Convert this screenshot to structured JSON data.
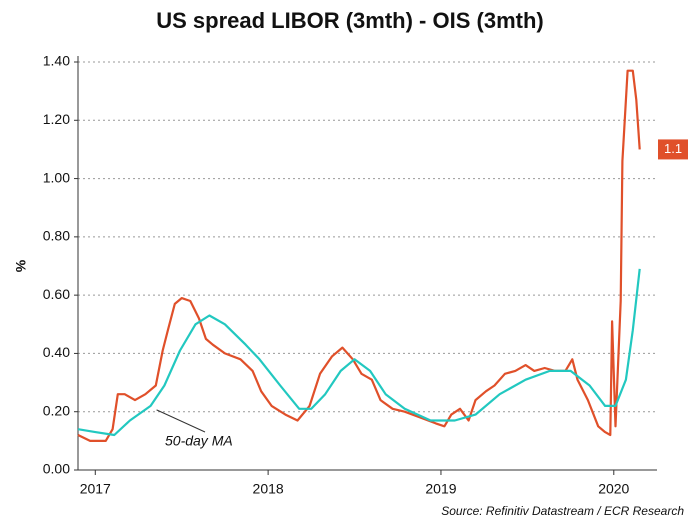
{
  "chart_data": {
    "type": "line",
    "title": "US spread LIBOR (3mth) - OIS (3mth)",
    "y_label": "%",
    "source": "Source: Refinitiv Datastream / ECR Research",
    "annotation": "50-day MA",
    "xlim": [
      2016.9,
      2020.25
    ],
    "xticks": [
      2017,
      2018,
      2019,
      2020
    ],
    "ylim": [
      0,
      1.4
    ],
    "yticks": [
      {
        "value": 0,
        "label": "0.00"
      },
      {
        "value": 0.2,
        "label": "0.20"
      },
      {
        "value": 0.4,
        "label": "0.40"
      },
      {
        "value": 0.6,
        "label": "0.60"
      },
      {
        "value": 0.8,
        "label": "0.80"
      },
      {
        "value": 1.0,
        "label": "1.00"
      },
      {
        "value": 1.2,
        "label": "1.20"
      },
      {
        "value": 1.4,
        "label": "1.40"
      }
    ],
    "grid": true,
    "series": [
      {
        "name": "LIBOR-OIS",
        "color": "#e0502a",
        "end_label": "1.1",
        "x": [
          2016.9,
          2016.97,
          2017.06,
          2017.1,
          2017.13,
          2017.17,
          2017.23,
          2017.29,
          2017.35,
          2017.39,
          2017.42,
          2017.46,
          2017.5,
          2017.55,
          2017.6,
          2017.64,
          2017.68,
          2017.75,
          2017.84,
          2017.91,
          2017.96,
          2018.02,
          2018.1,
          2018.17,
          2018.24,
          2018.3,
          2018.37,
          2018.43,
          2018.49,
          2018.54,
          2018.6,
          2018.65,
          2018.72,
          2018.79,
          2018.88,
          2018.97,
          2019.02,
          2019.06,
          2019.11,
          2019.16,
          2019.2,
          2019.26,
          2019.31,
          2019.37,
          2019.43,
          2019.49,
          2019.54,
          2019.6,
          2019.66,
          2019.72,
          2019.76,
          2019.79,
          2019.85,
          2019.91,
          2019.95,
          2019.98,
          2019.99,
          2020.01,
          2020.04,
          2020.05,
          2020.08,
          2020.11,
          2020.13,
          2020.15
        ],
        "values": [
          0.12,
          0.1,
          0.1,
          0.14,
          0.26,
          0.26,
          0.24,
          0.26,
          0.29,
          0.41,
          0.48,
          0.57,
          0.59,
          0.58,
          0.52,
          0.45,
          0.43,
          0.4,
          0.38,
          0.34,
          0.27,
          0.22,
          0.19,
          0.17,
          0.22,
          0.33,
          0.39,
          0.42,
          0.38,
          0.33,
          0.31,
          0.24,
          0.21,
          0.2,
          0.18,
          0.16,
          0.15,
          0.19,
          0.21,
          0.17,
          0.24,
          0.27,
          0.29,
          0.33,
          0.34,
          0.36,
          0.34,
          0.35,
          0.34,
          0.34,
          0.38,
          0.31,
          0.24,
          0.15,
          0.13,
          0.12,
          0.51,
          0.15,
          0.58,
          1.06,
          1.37,
          1.37,
          1.27,
          1.1
        ]
      },
      {
        "name": "50-day MA",
        "color": "#22c8c0",
        "x": [
          2016.9,
          2017.0,
          2017.11,
          2017.2,
          2017.32,
          2017.4,
          2017.49,
          2017.58,
          2017.66,
          2017.75,
          2017.87,
          2017.95,
          2018.07,
          2018.18,
          2018.25,
          2018.33,
          2018.42,
          2018.5,
          2018.59,
          2018.68,
          2018.79,
          2018.94,
          2019.08,
          2019.2,
          2019.34,
          2019.49,
          2019.63,
          2019.75,
          2019.86,
          2019.95,
          2020.01,
          2020.07,
          2020.11,
          2020.15
        ],
        "values": [
          0.14,
          0.13,
          0.12,
          0.17,
          0.22,
          0.29,
          0.41,
          0.5,
          0.53,
          0.5,
          0.43,
          0.38,
          0.29,
          0.21,
          0.21,
          0.26,
          0.34,
          0.38,
          0.34,
          0.26,
          0.21,
          0.17,
          0.17,
          0.19,
          0.26,
          0.31,
          0.34,
          0.34,
          0.29,
          0.22,
          0.22,
          0.31,
          0.48,
          0.69
        ]
      }
    ]
  }
}
